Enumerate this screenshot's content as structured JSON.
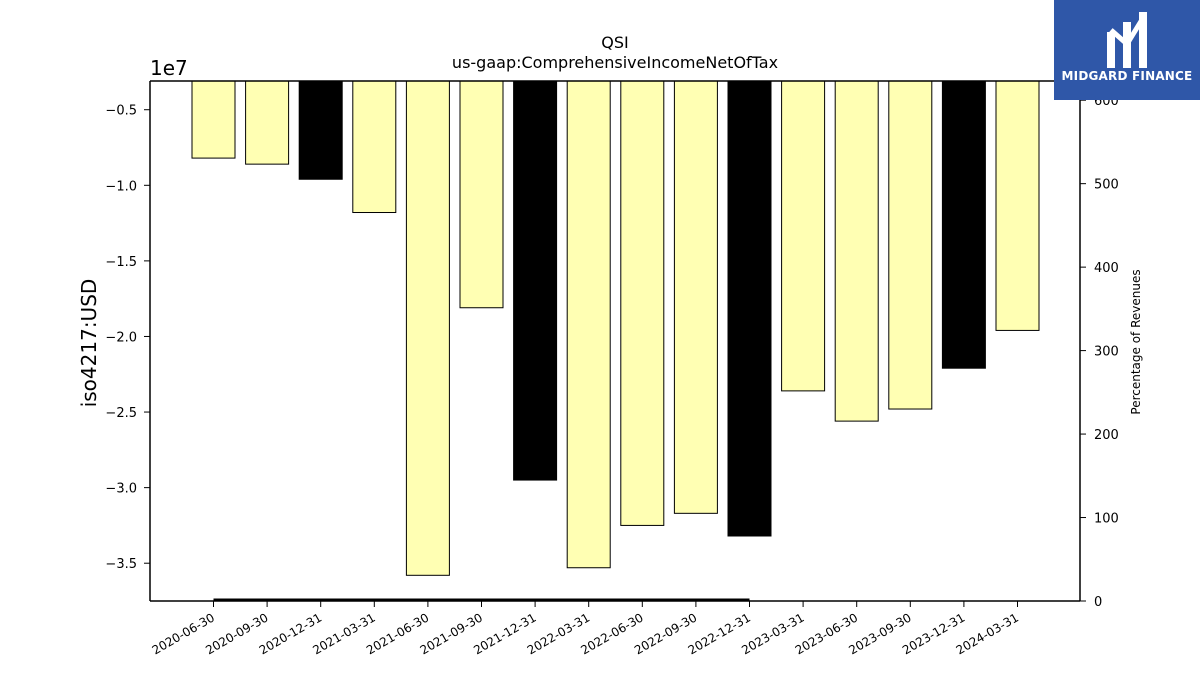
{
  "chart_data": {
    "type": "bar",
    "title": "QSI",
    "subtitle": "us-gaap:ComprehensiveIncomeNetOfTax",
    "ylabel": "iso4217:USD",
    "y_offset_label": "1e7",
    "y2label": "Percentage of Revenues",
    "categories": [
      "2020-06-30",
      "2020-09-30",
      "2020-12-31",
      "2021-03-31",
      "2021-06-30",
      "2021-09-30",
      "2021-12-31",
      "2022-03-31",
      "2022-06-30",
      "2022-09-30",
      "2022-12-31",
      "2023-03-31",
      "2023-06-30",
      "2023-09-30",
      "2023-12-31",
      "2024-03-31"
    ],
    "values": [
      -8200000,
      -8600000,
      -9600000,
      -11800000,
      -35800000,
      -18100000,
      -29500000,
      -35300000,
      -32500000,
      -31700000,
      -33200000,
      -23600000,
      -25600000,
      -24800000,
      -22100000,
      -19600000
    ],
    "annual": [
      false,
      false,
      true,
      false,
      false,
      false,
      true,
      false,
      false,
      false,
      true,
      false,
      false,
      false,
      true,
      false
    ],
    "colors": {
      "quarterly": "#ffffb3",
      "annual": "#000000",
      "edge": "#000000"
    },
    "ylim": [
      -37500000,
      -3100000
    ],
    "yticks": [
      -5000000,
      -10000000,
      -15000000,
      -20000000,
      -25000000,
      -30000000,
      -35000000
    ],
    "ytick_labels": [
      "−0.5",
      "−1.0",
      "−1.5",
      "−2.0",
      "−2.5",
      "−3.0",
      "−3.5"
    ],
    "y2lim": [
      0,
      623
    ],
    "y2ticks": [
      0,
      100,
      200,
      300,
      400,
      500,
      600
    ],
    "y2tick_labels": [
      "0",
      "100",
      "200",
      "300",
      "400",
      "500",
      "600"
    ],
    "percentage_line": {
      "from": "2020-06-30",
      "to": "2022-12-31",
      "value": 0
    },
    "legend": "none",
    "grid": false
  },
  "logo": {
    "text": "MIDGARD FINANCE",
    "icon": "midgard-logo-icon"
  }
}
